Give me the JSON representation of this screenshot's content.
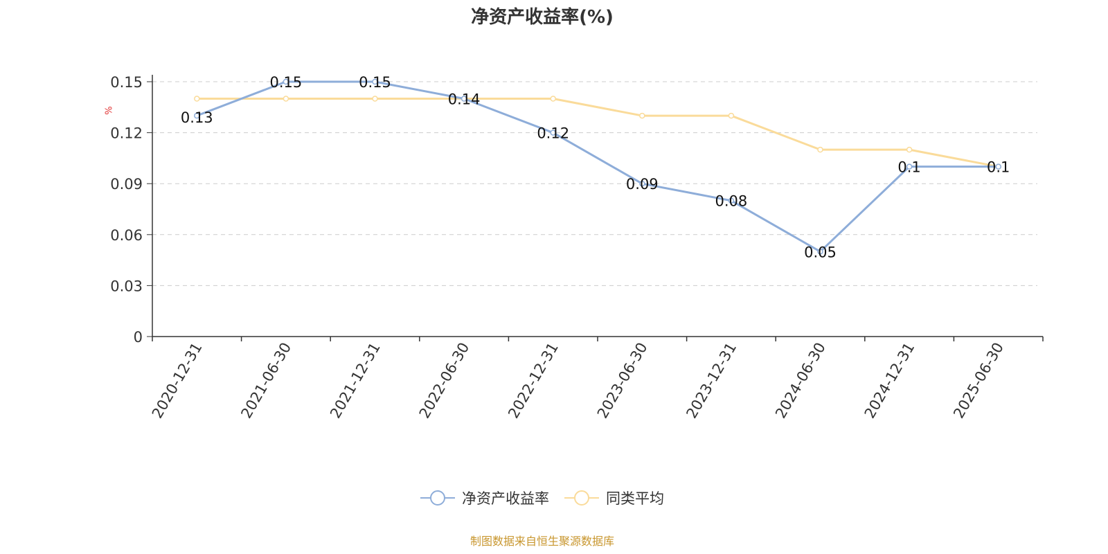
{
  "chart_data": {
    "type": "line",
    "title": "净资产收益率(%)",
    "ylabel": "%",
    "categories": [
      "2020-12-31",
      "2021-06-30",
      "2021-12-31",
      "2022-06-30",
      "2022-12-31",
      "2023-06-30",
      "2023-12-31",
      "2024-06-30",
      "2024-12-31",
      "2025-06-30"
    ],
    "series": [
      {
        "name": "净资产收益率",
        "color": "#8eadd9",
        "values": [
          0.13,
          0.15,
          0.15,
          0.14,
          0.12,
          0.09,
          0.08,
          0.05,
          0.1,
          0.1
        ],
        "labels": [
          "0.13",
          "0.15",
          "0.15",
          "0.14",
          "0.12",
          "0.09",
          "0.08",
          "0.05",
          "0.1",
          "0.1"
        ]
      },
      {
        "name": "同类平均",
        "color": "#fadb9a",
        "values": [
          0.14,
          0.14,
          0.14,
          0.14,
          0.14,
          0.13,
          0.13,
          0.11,
          0.11,
          0.1
        ]
      }
    ],
    "yticks": [
      "0",
      "0.03",
      "0.06",
      "0.09",
      "0.12",
      "0.15"
    ],
    "ylim": [
      0,
      0.15
    ],
    "grid": true,
    "legend": "bottom-center"
  },
  "source": "制图数据来自恒生聚源数据库"
}
